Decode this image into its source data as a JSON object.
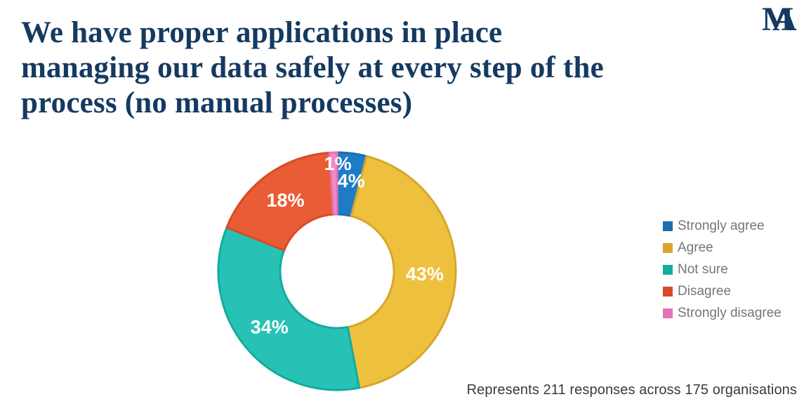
{
  "header": {
    "title": "We have proper applications in place managing our data safely at every step of the process (no manual processes)",
    "title_lines": [
      "We have proper applications in place",
      "managing our data safely at every step of the",
      "process (no manual processes)"
    ],
    "title_color": "#153A61",
    "logo": {
      "m": "M",
      "a": "A",
      "color": "#153A61"
    }
  },
  "chart_data": {
    "type": "pie",
    "subtype": "donut",
    "title": "We have proper applications in place managing our data safely at every step of the process (no manual processes)",
    "unit": "%",
    "donut_hole_ratio": 0.48,
    "start_angle_deg": 0,
    "direction": "clockwise",
    "legend_position": "right",
    "label_color": "#FFFFFF",
    "series": [
      {
        "name": "Strongly agree",
        "value": 4,
        "label": "4%",
        "color": "#1E7CC7",
        "border_color": "#1B6EAE"
      },
      {
        "name": "Agree",
        "value": 43,
        "label": "43%",
        "color": "#EDC13E",
        "border_color": "#D8A62C"
      },
      {
        "name": "Not sure",
        "value": 34,
        "label": "34%",
        "color": "#27C2B5",
        "border_color": "#12ACA0"
      },
      {
        "name": "Disagree",
        "value": 18,
        "label": "18%",
        "color": "#EA5C35",
        "border_color": "#D64B28"
      },
      {
        "name": "Strongly disagree",
        "value": 1,
        "label": "1%",
        "color": "#F28AC6",
        "border_color": "#E772B7"
      }
    ]
  },
  "footer": {
    "note": "Represents 211 responses across 175 organisations"
  }
}
